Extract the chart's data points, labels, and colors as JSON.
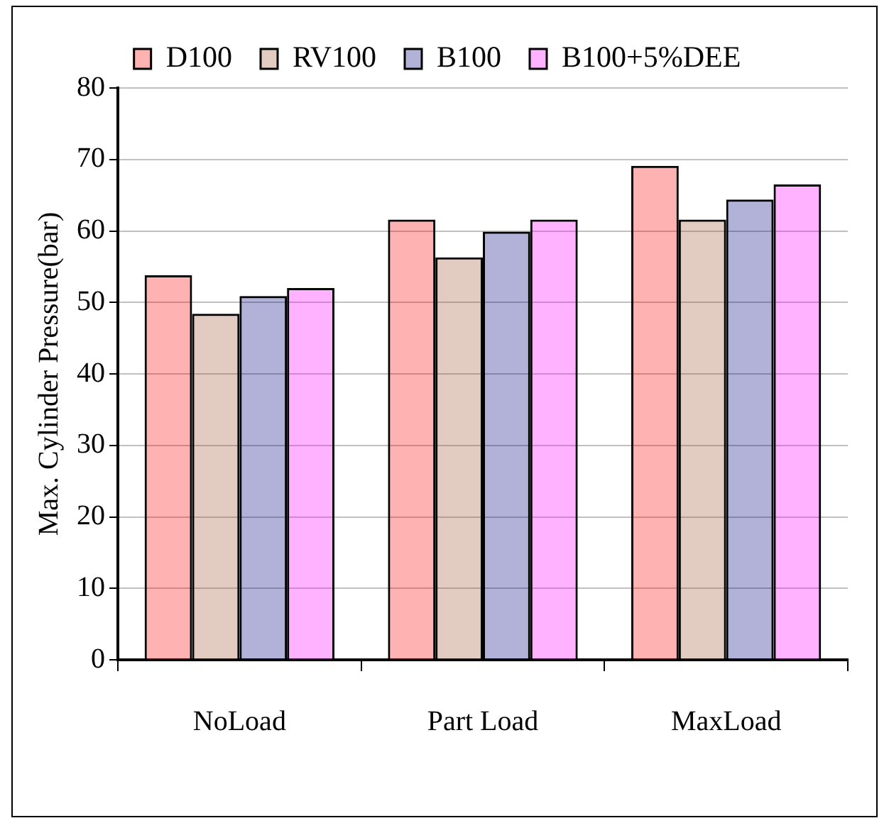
{
  "chart_data": {
    "type": "bar",
    "ylabel": "Max. Cylinder Pressure(bar)",
    "categories": [
      "NoLoad",
      "Part Load",
      "MaxLoad"
    ],
    "series": [
      {
        "name": "D100",
        "color": "#ff0000",
        "values": [
          53.8,
          61.6,
          69.1
        ]
      },
      {
        "name": "RV100",
        "color": "#a0522d",
        "values": [
          48.4,
          56.3,
          61.6
        ]
      },
      {
        "name": "B100",
        "color": "#000080",
        "values": [
          50.9,
          59.9,
          64.4
        ]
      },
      {
        "name": "B100+5%DEE",
        "color": "#ff00ff",
        "values": [
          52.0,
          61.6,
          66.5
        ]
      }
    ],
    "ylim": [
      0,
      80
    ],
    "yticks": [
      0,
      10,
      20,
      30,
      40,
      50,
      60,
      70,
      80
    ],
    "grid": "y",
    "legend": "top"
  }
}
